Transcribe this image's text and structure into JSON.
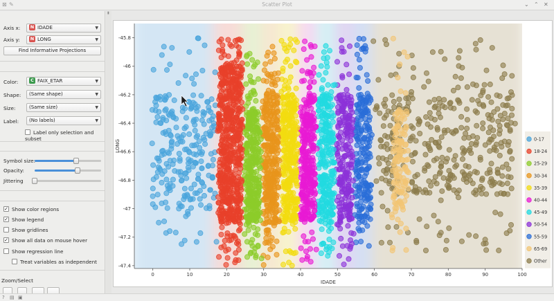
{
  "window": {
    "title": "Scatter Plot"
  },
  "controls": {
    "axis_x": {
      "label": "Axis x:",
      "value": "IDADE",
      "badge": "N"
    },
    "axis_y": {
      "label": "Axis y:",
      "value": "LONG",
      "badge": "N"
    },
    "find_button": "Find Informative Projections",
    "color": {
      "label": "Color:",
      "value": "FAIX_ETAR",
      "badge": "C"
    },
    "shape": {
      "label": "Shape:",
      "value": "(Same shape)"
    },
    "size": {
      "label": "Size:",
      "value": "(Same size)"
    },
    "label": {
      "label": "Label:",
      "value": "(No labels)"
    },
    "label_only_selection": "Label only selection and subset",
    "symbol_size": {
      "label": "Symbol size:",
      "value": 0.62
    },
    "opacity": {
      "label": "Opacity:",
      "value": 0.65
    },
    "jittering": {
      "label": "Jittering",
      "value": 0.0
    },
    "checkboxes": [
      {
        "label": "Show color regions",
        "checked": true
      },
      {
        "label": "Show legend",
        "checked": true
      },
      {
        "label": "Show gridlines",
        "checked": false
      },
      {
        "label": "Show all data on mouse hover",
        "checked": true
      },
      {
        "label": "Show regression line",
        "checked": false
      },
      {
        "label": "Treat variables as independent",
        "checked": false
      }
    ],
    "zoom_select": "Zoom/Select"
  },
  "chart_data": {
    "type": "scatter",
    "xlabel": "IDADE",
    "ylabel": "LONG",
    "xlim": [
      -5,
      100
    ],
    "ylim": [
      -47.42,
      -45.7
    ],
    "xticks": [
      0,
      10,
      20,
      30,
      40,
      50,
      60,
      70,
      80,
      90,
      100
    ],
    "yticks": [
      -45.8,
      -46,
      -46.2,
      -46.4,
      -46.6,
      -46.8,
      -47,
      -47.2,
      -47.4
    ],
    "ytick_labels": [
      "-45.8",
      "-46",
      "-46.2",
      "-46.4",
      "-46.6",
      "-46.8",
      "-47",
      "-47.2",
      "-47.4"
    ],
    "legend_position": "right",
    "series": [
      {
        "name": "0-17",
        "color": "#4aa4dc",
        "x_range": [
          0,
          17
        ],
        "y_range": [
          -47.25,
          -45.8
        ],
        "dense_y": [
          -47.0,
          -46.2
        ],
        "count": 260
      },
      {
        "name": "18-24",
        "color": "#e8402a",
        "x_range": [
          18,
          24
        ],
        "y_range": [
          -47.4,
          -45.8
        ],
        "dense_y": [
          -47.1,
          -46.0
        ],
        "count": 650
      },
      {
        "name": "25-29",
        "color": "#8ccc2a",
        "x_range": [
          25,
          29
        ],
        "y_range": [
          -47.35,
          -45.9
        ],
        "dense_y": [
          -47.1,
          -46.3
        ],
        "count": 380
      },
      {
        "name": "30-34",
        "color": "#e8951c",
        "x_range": [
          30,
          34
        ],
        "y_range": [
          -47.4,
          -45.85
        ],
        "dense_y": [
          -47.1,
          -46.2
        ],
        "count": 380
      },
      {
        "name": "35-39",
        "color": "#f2dc10",
        "x_range": [
          35,
          39
        ],
        "y_range": [
          -47.4,
          -45.8
        ],
        "dense_y": [
          -47.1,
          -46.2
        ],
        "count": 360
      },
      {
        "name": "40-44",
        "color": "#e81ad4",
        "x_range": [
          40,
          44
        ],
        "y_range": [
          -47.4,
          -45.8
        ],
        "dense_y": [
          -47.1,
          -46.2
        ],
        "count": 330
      },
      {
        "name": "45-49",
        "color": "#22dae0",
        "x_range": [
          45,
          49
        ],
        "y_range": [
          -47.35,
          -45.85
        ],
        "dense_y": [
          -47.1,
          -46.2
        ],
        "count": 290
      },
      {
        "name": "50-54",
        "color": "#8c32d8",
        "x_range": [
          50,
          54
        ],
        "y_range": [
          -47.4,
          -45.8
        ],
        "dense_y": [
          -47.1,
          -46.2
        ],
        "count": 250
      },
      {
        "name": "55-59",
        "color": "#2a6ed8",
        "x_range": [
          55,
          59
        ],
        "y_range": [
          -47.3,
          -45.8
        ],
        "dense_y": [
          -47.1,
          -46.2
        ],
        "count": 220
      },
      {
        "name": "65-69",
        "color": "#f2c574",
        "x_range": [
          65,
          69
        ],
        "y_range": [
          -47.3,
          -45.8
        ],
        "dense_y": [
          -47.0,
          -46.3
        ],
        "count": 140
      },
      {
        "name": "Other",
        "color": "#8c7c4c",
        "x_range": [
          60,
          98
        ],
        "y_range": [
          -47.3,
          -45.8
        ],
        "dense_y": [
          -46.9,
          -46.2
        ],
        "count": 420
      }
    ],
    "color_regions": [
      {
        "x_range": [
          -5,
          17
        ],
        "color": "#d4e6f4"
      },
      {
        "x_range": [
          17,
          25
        ],
        "color": "#f7dcd8"
      },
      {
        "x_range": [
          25,
          30
        ],
        "color": "#e6f2d4"
      },
      {
        "x_range": [
          30,
          35
        ],
        "color": "#f6e7d2"
      },
      {
        "x_range": [
          35,
          40
        ],
        "color": "#f8f4cc"
      },
      {
        "x_range": [
          40,
          45
        ],
        "color": "#f6d8f2"
      },
      {
        "x_range": [
          45,
          50
        ],
        "color": "#d4f2f4"
      },
      {
        "x_range": [
          50,
          55
        ],
        "color": "#e2d6f2"
      },
      {
        "x_range": [
          55,
          60
        ],
        "color": "#d4e0f4"
      },
      {
        "x_range": [
          60,
          100
        ],
        "color": "#e6e1d4"
      }
    ]
  },
  "status": {
    "icons": [
      "help-icon",
      "report-icon",
      "save-icon"
    ]
  }
}
